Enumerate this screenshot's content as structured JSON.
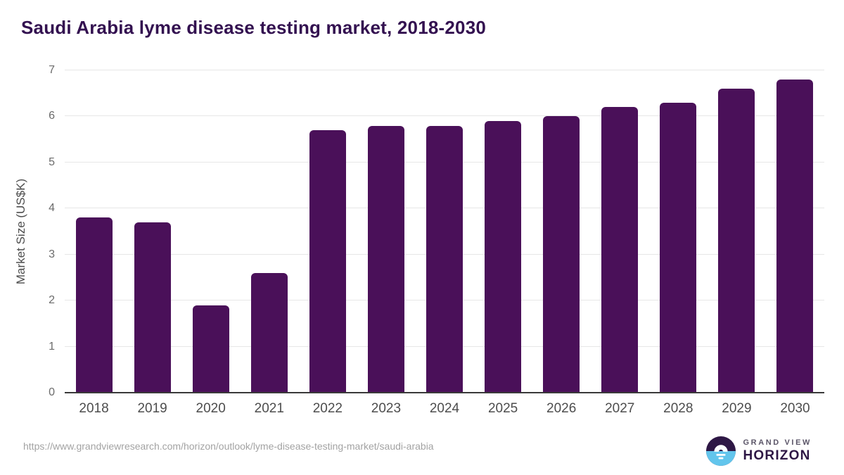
{
  "title": "Saudi Arabia lyme disease testing market, 2018-2030",
  "chart_data": {
    "type": "bar",
    "categories": [
      "2018",
      "2019",
      "2020",
      "2021",
      "2022",
      "2023",
      "2024",
      "2025",
      "2026",
      "2027",
      "2028",
      "2029",
      "2030"
    ],
    "values": [
      3.8,
      3.7,
      1.9,
      2.6,
      5.7,
      5.8,
      5.8,
      5.9,
      6.0,
      6.2,
      6.3,
      6.6,
      6.8
    ],
    "title": "Saudi Arabia lyme disease testing market, 2018-2030",
    "xlabel": "",
    "ylabel": "Market Size (US$K)",
    "ylim": [
      0,
      7
    ],
    "yticks": [
      0,
      1,
      2,
      3,
      4,
      5,
      6,
      7
    ],
    "grid": true,
    "legend": "none",
    "bar_color": "#4a1059"
  },
  "colors": {
    "title": "#331150",
    "bar": "#4a1059",
    "gridline": "#e7e7e7",
    "axis_line": "#3a3a3a",
    "tick_label": "#4d4d4d",
    "url": "#a3a3a3",
    "logo_purple": "#2e1745",
    "logo_blue": "#62c5ec"
  },
  "footer": {
    "source_url": "https://www.grandviewresearch.com/horizon/outlook/lyme-disease-testing-market/saudi-arabia",
    "logo_line1": "GRAND VIEW",
    "logo_line2": "HORIZON"
  }
}
